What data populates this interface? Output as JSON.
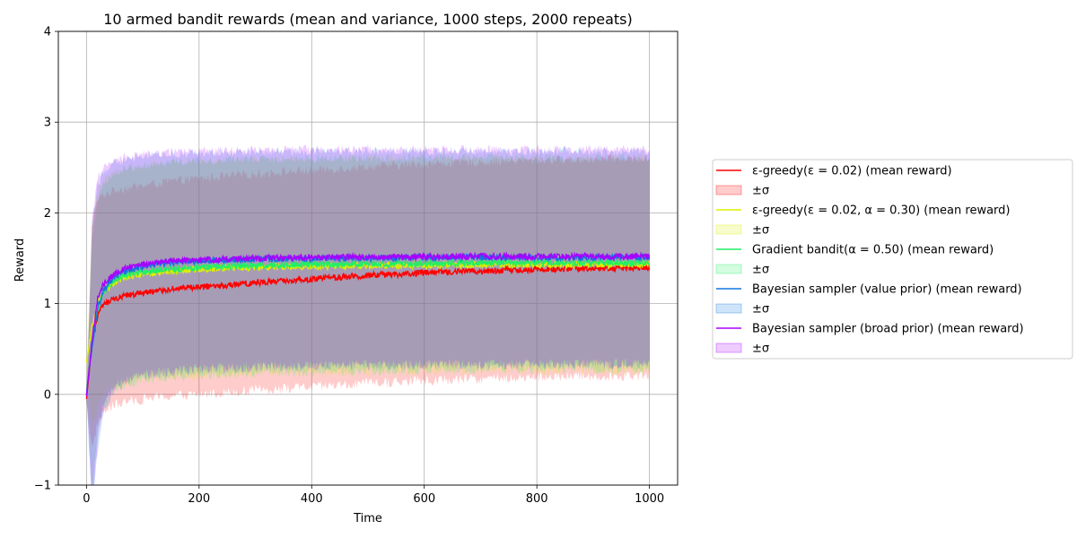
{
  "chart_data": {
    "type": "line",
    "title": "10 armed bandit rewards (mean and variance, 1000 steps, 2000 repeats)",
    "xlabel": "Time",
    "ylabel": "Reward",
    "xlim": [
      -50,
      1050
    ],
    "ylim": [
      -1,
      4
    ],
    "xticks": [
      "0",
      "200",
      "400",
      "600",
      "800",
      "1000"
    ],
    "yticks": [
      "−1",
      "0",
      "1",
      "2",
      "3",
      "4"
    ],
    "grid": true,
    "legend_position": "right",
    "band_label": "±σ",
    "series": [
      {
        "name": "ε-greedy(ε = 0.02) (mean reward)",
        "color": "#ff0000",
        "x": [
          0,
          10,
          20,
          30,
          50,
          75,
          100,
          150,
          200,
          300,
          400,
          500,
          600,
          700,
          800,
          900,
          1000
        ],
        "mean": [
          -0.05,
          0.55,
          0.88,
          0.98,
          1.05,
          1.09,
          1.12,
          1.16,
          1.18,
          1.23,
          1.27,
          1.31,
          1.34,
          1.36,
          1.38,
          1.39,
          1.4
        ],
        "upper": [
          -0.05,
          1.85,
          2.15,
          2.2,
          2.25,
          2.28,
          2.3,
          2.35,
          2.38,
          2.43,
          2.47,
          2.51,
          2.54,
          2.56,
          2.58,
          2.59,
          2.6
        ],
        "lower": [
          -0.05,
          -0.6,
          -0.3,
          -0.2,
          -0.12,
          -0.08,
          -0.05,
          -0.02,
          0.0,
          0.05,
          0.08,
          0.12,
          0.15,
          0.17,
          0.19,
          0.2,
          0.21
        ]
      },
      {
        "name": "ε-greedy(ε = 0.02, α = 0.30) (mean reward)",
        "color": "#ddee00",
        "x": [
          0,
          10,
          20,
          30,
          50,
          75,
          100,
          150,
          200,
          300,
          400,
          500,
          600,
          700,
          800,
          900,
          1000
        ],
        "mean": [
          0.35,
          0.75,
          1.0,
          1.12,
          1.24,
          1.3,
          1.33,
          1.36,
          1.38,
          1.4,
          1.41,
          1.42,
          1.42,
          1.43,
          1.43,
          1.43,
          1.43
        ],
        "upper": [
          0.4,
          1.9,
          2.2,
          2.35,
          2.45,
          2.5,
          2.53,
          2.55,
          2.56,
          2.58,
          2.59,
          2.6,
          2.6,
          2.6,
          2.6,
          2.6,
          2.6
        ],
        "lower": [
          0.3,
          -0.4,
          -0.1,
          0.0,
          0.08,
          0.13,
          0.16,
          0.19,
          0.21,
          0.23,
          0.24,
          0.25,
          0.25,
          0.26,
          0.26,
          0.26,
          0.26
        ]
      },
      {
        "name": "Gradient bandit(α = 0.50) (mean reward)",
        "color": "#22ee66",
        "x": [
          0,
          10,
          20,
          30,
          50,
          75,
          100,
          150,
          200,
          300,
          400,
          500,
          600,
          700,
          800,
          900,
          1000
        ],
        "mean": [
          0.0,
          0.6,
          0.95,
          1.12,
          1.26,
          1.32,
          1.35,
          1.38,
          1.4,
          1.42,
          1.43,
          1.44,
          1.44,
          1.45,
          1.45,
          1.45,
          1.45
        ],
        "upper": [
          0.0,
          1.7,
          2.1,
          2.3,
          2.45,
          2.5,
          2.52,
          2.55,
          2.57,
          2.59,
          2.6,
          2.6,
          2.61,
          2.61,
          2.61,
          2.61,
          2.61
        ],
        "lower": [
          0.0,
          -1.0,
          -0.4,
          -0.1,
          0.06,
          0.12,
          0.15,
          0.19,
          0.21,
          0.24,
          0.25,
          0.26,
          0.27,
          0.28,
          0.28,
          0.28,
          0.28
        ]
      },
      {
        "name": "Bayesian sampler (value prior) (mean reward)",
        "color": "#1177dd",
        "x": [
          0,
          10,
          20,
          30,
          50,
          75,
          100,
          150,
          200,
          300,
          400,
          500,
          600,
          700,
          800,
          900,
          1000
        ],
        "mean": [
          0.0,
          0.55,
          0.95,
          1.15,
          1.3,
          1.37,
          1.41,
          1.45,
          1.47,
          1.49,
          1.5,
          1.5,
          1.51,
          1.51,
          1.51,
          1.51,
          1.51
        ],
        "upper": [
          0.0,
          1.9,
          2.3,
          2.45,
          2.55,
          2.6,
          2.62,
          2.65,
          2.66,
          2.67,
          2.68,
          2.68,
          2.68,
          2.68,
          2.68,
          2.68,
          2.68
        ],
        "lower": [
          0.0,
          -1.3,
          -0.6,
          -0.2,
          0.05,
          0.15,
          0.2,
          0.25,
          0.27,
          0.3,
          0.31,
          0.32,
          0.33,
          0.33,
          0.33,
          0.33,
          0.33
        ]
      },
      {
        "name": "Bayesian sampler (broad prior) (mean reward)",
        "color": "#aa00ff",
        "x": [
          0,
          10,
          20,
          30,
          50,
          75,
          100,
          150,
          200,
          300,
          400,
          500,
          600,
          700,
          800,
          900,
          1000
        ],
        "mean": [
          -0.02,
          0.6,
          1.05,
          1.22,
          1.33,
          1.4,
          1.43,
          1.47,
          1.48,
          1.5,
          1.51,
          1.51,
          1.52,
          1.52,
          1.52,
          1.52,
          1.52
        ],
        "upper": [
          0.0,
          1.9,
          2.4,
          2.5,
          2.58,
          2.63,
          2.65,
          2.67,
          2.68,
          2.69,
          2.7,
          2.7,
          2.7,
          2.7,
          2.7,
          2.7,
          2.7
        ],
        "lower": [
          0.0,
          -1.2,
          -0.5,
          -0.1,
          0.08,
          0.17,
          0.21,
          0.26,
          0.28,
          0.3,
          0.31,
          0.32,
          0.33,
          0.33,
          0.33,
          0.33,
          0.34
        ]
      }
    ]
  }
}
